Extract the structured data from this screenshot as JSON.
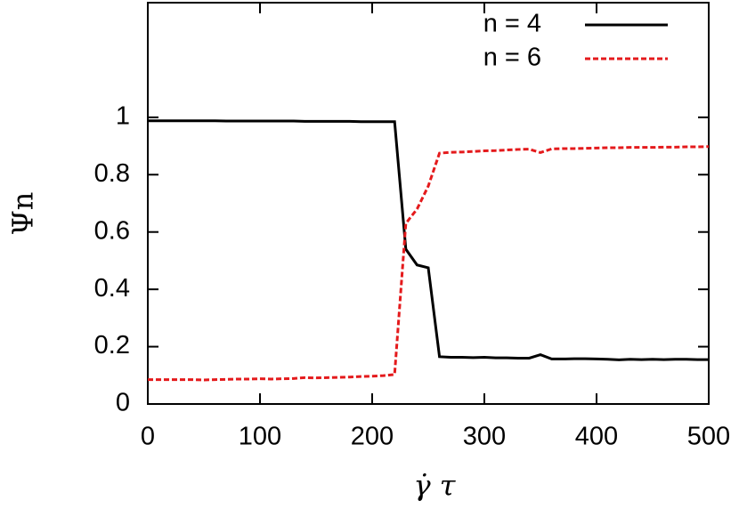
{
  "chart_data": {
    "type": "line",
    "x_label": "γ̇ τ",
    "y_label": "Ψn",
    "x": [
      0,
      10,
      20,
      30,
      40,
      50,
      60,
      70,
      80,
      90,
      100,
      110,
      120,
      130,
      140,
      150,
      160,
      170,
      180,
      190,
      200,
      210,
      220,
      230,
      240,
      250,
      260,
      270,
      280,
      290,
      300,
      310,
      320,
      330,
      340,
      350,
      360,
      370,
      380,
      390,
      400,
      410,
      420,
      430,
      440,
      450,
      460,
      470,
      480,
      490,
      500
    ],
    "series": [
      {
        "name": "n = 4",
        "color": "#000000",
        "dash": "solid",
        "values": [
          0.988,
          0.988,
          0.988,
          0.988,
          0.988,
          0.988,
          0.988,
          0.987,
          0.987,
          0.987,
          0.987,
          0.987,
          0.987,
          0.987,
          0.986,
          0.986,
          0.986,
          0.986,
          0.986,
          0.985,
          0.985,
          0.985,
          0.985,
          0.54,
          0.485,
          0.475,
          0.165,
          0.163,
          0.163,
          0.162,
          0.163,
          0.161,
          0.161,
          0.16,
          0.16,
          0.172,
          0.157,
          0.157,
          0.158,
          0.158,
          0.157,
          0.156,
          0.154,
          0.156,
          0.155,
          0.156,
          0.155,
          0.156,
          0.156,
          0.155,
          0.155
        ]
      },
      {
        "name": "n = 6",
        "color": "#e41a1c",
        "dash": "dashed",
        "values": [
          0.085,
          0.085,
          0.085,
          0.085,
          0.085,
          0.084,
          0.085,
          0.086,
          0.087,
          0.087,
          0.088,
          0.087,
          0.088,
          0.089,
          0.092,
          0.091,
          0.092,
          0.093,
          0.094,
          0.096,
          0.097,
          0.099,
          0.103,
          0.63,
          0.68,
          0.76,
          0.875,
          0.878,
          0.879,
          0.881,
          0.883,
          0.884,
          0.886,
          0.888,
          0.889,
          0.877,
          0.89,
          0.891,
          0.891,
          0.892,
          0.893,
          0.894,
          0.894,
          0.895,
          0.895,
          0.895,
          0.896,
          0.896,
          0.897,
          0.897,
          0.898
        ]
      }
    ],
    "xlim": [
      0,
      500
    ],
    "xticks": [
      0,
      100,
      200,
      300,
      400,
      500
    ],
    "ylim": [
      0,
      1.4
    ],
    "yticks": [
      0,
      0.2,
      0.4,
      0.6,
      0.8,
      1
    ],
    "legend": "top-right"
  }
}
